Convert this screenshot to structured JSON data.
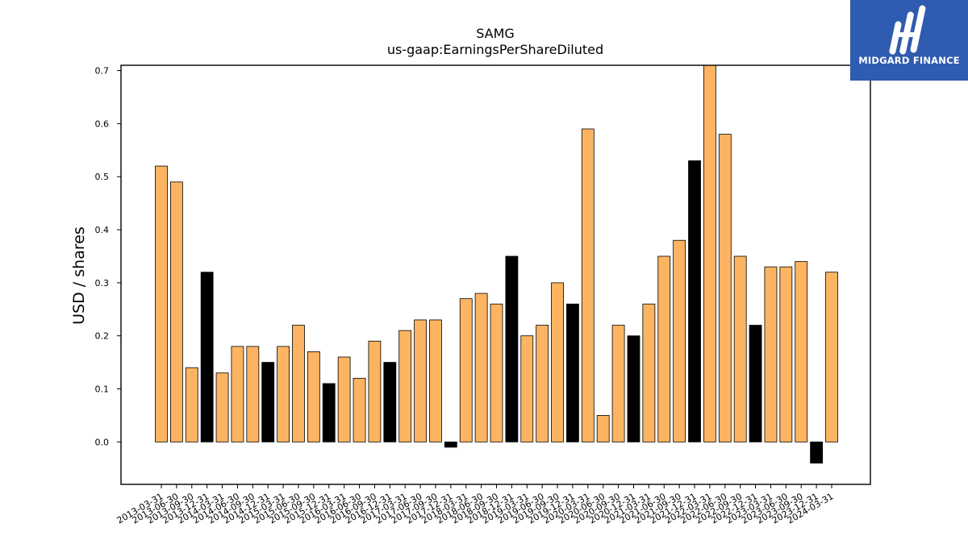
{
  "brand": {
    "name": "MIDGARD FINANCE",
    "logo_icon": "midgard-logo-icon",
    "background_color": "#2f5bb0"
  },
  "chart_data": {
    "type": "bar",
    "title": "SAMG",
    "subtitle": "us-gaap:EarningsPerShareDiluted",
    "xlabel": "",
    "ylabel": "USD / shares",
    "ylim": [
      -0.08,
      0.71
    ],
    "yticks": [
      "0.0",
      "0.1",
      "0.2",
      "0.3",
      "0.4",
      "0.5",
      "0.6",
      "0.7"
    ],
    "grid": false,
    "colors": {
      "quarterly": "#fdb462",
      "annual": "#000000"
    },
    "categories": [
      "2013-03-31",
      "2013-06-30",
      "2013-09-30",
      "2013-12-31",
      "2014-03-31",
      "2014-06-30",
      "2014-09-30",
      "2014-12-31",
      "2015-03-31",
      "2015-06-30",
      "2015-09-30",
      "2015-12-31",
      "2016-03-31",
      "2016-06-30",
      "2016-09-30",
      "2016-12-31",
      "2017-03-31",
      "2017-06-30",
      "2017-09-30",
      "2017-12-31",
      "2018-03-31",
      "2018-06-30",
      "2018-09-30",
      "2018-12-31",
      "2019-03-31",
      "2019-06-30",
      "2019-09-30",
      "2019-12-31",
      "2020-03-31",
      "2020-06-30",
      "2020-09-30",
      "2020-12-31",
      "2021-03-31",
      "2021-06-30",
      "2021-09-30",
      "2021-12-31",
      "2022-03-31",
      "2022-06-30",
      "2022-09-30",
      "2022-12-31",
      "2023-03-31",
      "2023-06-30",
      "2023-09-30",
      "2023-12-31",
      "2024-03-31"
    ],
    "values": [
      0.52,
      0.49,
      0.14,
      0.32,
      0.13,
      0.18,
      0.18,
      0.15,
      0.18,
      0.22,
      0.17,
      0.11,
      0.16,
      0.12,
      0.19,
      0.15,
      0.21,
      0.23,
      0.23,
      -0.01,
      0.27,
      0.28,
      0.26,
      0.35,
      0.2,
      0.22,
      0.3,
      0.26,
      0.59,
      0.05,
      0.22,
      0.2,
      0.26,
      0.35,
      0.38,
      0.53,
      0.71,
      0.58,
      0.35,
      0.22,
      0.33,
      0.33,
      0.34,
      -0.04,
      0.32
    ],
    "bar_kind": [
      "q",
      "q",
      "q",
      "a",
      "q",
      "q",
      "q",
      "a",
      "q",
      "q",
      "q",
      "a",
      "q",
      "q",
      "q",
      "a",
      "q",
      "q",
      "q",
      "a",
      "q",
      "q",
      "q",
      "a",
      "q",
      "q",
      "q",
      "a",
      "q",
      "q",
      "q",
      "a",
      "q",
      "q",
      "q",
      "a",
      "q",
      "q",
      "q",
      "a",
      "q",
      "q",
      "q",
      "a",
      "q"
    ]
  }
}
